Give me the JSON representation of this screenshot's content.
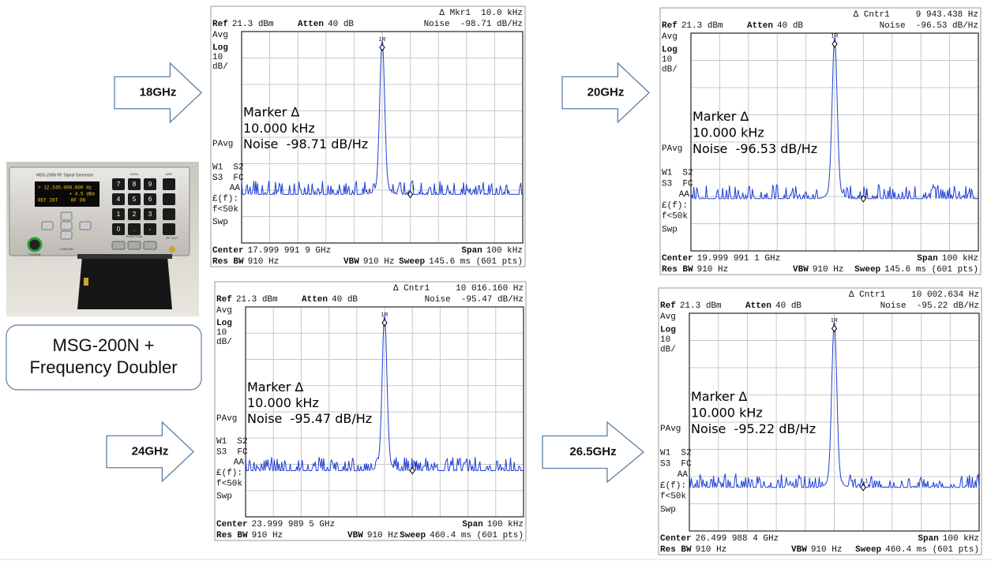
{
  "photo": {
    "brand": "MSG-200N RF Signal Generator",
    "display": [
      "> 12.345.000.000 Hz",
      "+ 4.5 dBm",
      "REF INT",
      "RF ON"
    ],
    "keys": [
      "7",
      "8",
      "9",
      "4",
      "5",
      "6",
      "1",
      "2",
      "3",
      "0",
      ".",
      "-"
    ],
    "section_labels": [
      "DATA",
      "UNIT",
      "FUNCTION",
      "CURSOR",
      "POWER",
      "RF OUT"
    ]
  },
  "caption": [
    "MSG-200N +",
    "Frequency Doubler"
  ],
  "panels": [
    {
      "arrow_label": "18GHz",
      "header": "Δ Mkr1  10.0 kHz",
      "ref_label": "Ref",
      "ref_value": "21.3 dBm",
      "atten_label": "Atten",
      "atten_value": "40 dB",
      "noise": "Noise  -98.71 dB/Hz",
      "side_labels": [
        "Avg",
        "Log",
        "10",
        "dB/",
        "PAvg",
        "W1  S2",
        "S3  FC",
        "AA",
        "£(f):",
        "f<50k",
        "Swp"
      ],
      "peak_label": "1R",
      "delta_label": "1",
      "marker_text": [
        "Marker Δ",
        "10.000 kHz",
        "Noise  -98.71 dB/Hz"
      ],
      "center_label": "Center",
      "center_value": "17.999 991 9 GHz",
      "span_label": "Span",
      "span_value": "100 kHz",
      "rbw_label": "Res BW",
      "rbw_value": "910 Hz",
      "vbw_label": "VBW",
      "vbw_value": "910 Hz",
      "sweep_label": "Sweep",
      "sweep_value": "145.6 ms (601 pts)"
    },
    {
      "arrow_label": "20GHz",
      "header": "Δ Cntr1     9 943.438 Hz",
      "ref_label": "Ref",
      "ref_value": "21.3 dBm",
      "atten_label": "Atten",
      "atten_value": "40 dB",
      "noise": "Noise  -96.53 dB/Hz",
      "side_labels": [
        "Avg",
        "Log",
        "10",
        "dB/",
        "PAvg",
        "W1  S2",
        "S3  FC",
        "AA",
        "£(f):",
        "f<50k",
        "Swp"
      ],
      "peak_label": "1R",
      "delta_label": "1",
      "marker_text": [
        "Marker Δ",
        "10.000 kHz",
        "Noise  -96.53 dB/Hz"
      ],
      "center_label": "Center",
      "center_value": "19.999 991 1 GHz",
      "span_label": "Span",
      "span_value": "100 kHz",
      "rbw_label": "Res BW",
      "rbw_value": "910 Hz",
      "vbw_label": "VBW",
      "vbw_value": "910 Hz",
      "sweep_label": "Sweep",
      "sweep_value": "145.6 ms (601 pts)"
    },
    {
      "arrow_label": "24GHz",
      "header": "Δ Cntr1     10 016.160 Hz",
      "ref_label": "Ref",
      "ref_value": "21.3 dBm",
      "atten_label": "Atten",
      "atten_value": "40 dB",
      "noise": "Noise  -95.47 dB/Hz",
      "side_labels": [
        "Avg",
        "Log",
        "10",
        "dB/",
        "PAvg",
        "W1  S2",
        "S3  FC",
        "AA",
        "£(f):",
        "f<50k",
        "Swp"
      ],
      "peak_label": "1R",
      "delta_label": "1",
      "marker_text": [
        "Marker Δ",
        "10.000 kHz",
        "Noise  -95.47 dB/Hz"
      ],
      "center_label": "Center",
      "center_value": "23.999 989 5 GHz",
      "span_label": "Span",
      "span_value": "100 kHz",
      "rbw_label": "Res BW",
      "rbw_value": "910 Hz",
      "vbw_label": "VBW",
      "vbw_value": "910 Hz",
      "sweep_label": "Sweep",
      "sweep_value": "460.4 ms (601 pts)"
    },
    {
      "arrow_label": "26.5GHz",
      "header": "Δ Cntr1     10 002.634 Hz",
      "ref_label": "Ref",
      "ref_value": "21.3 dBm",
      "atten_label": "Atten",
      "atten_value": "40 dB",
      "noise": "Noise  -95.22 dB/Hz",
      "side_labels": [
        "Avg",
        "Log",
        "10",
        "dB/",
        "PAvg",
        "W1  S2",
        "S3  FC",
        "AA",
        "£(f):",
        "f<50k",
        "Swp"
      ],
      "peak_label": "1R",
      "delta_label": "1",
      "marker_text": [
        "Marker Δ",
        "10.000 kHz",
        "Noise  -95.22 dB/Hz"
      ],
      "center_label": "Center",
      "center_value": "26.499 988 4 GHz",
      "span_label": "Span",
      "span_value": "100 kHz",
      "rbw_label": "Res BW",
      "rbw_value": "910 Hz",
      "vbw_label": "VBW",
      "vbw_value": "910 Hz",
      "sweep_label": "Sweep",
      "sweep_value": "460.4 ms (601 pts)"
    }
  ]
}
